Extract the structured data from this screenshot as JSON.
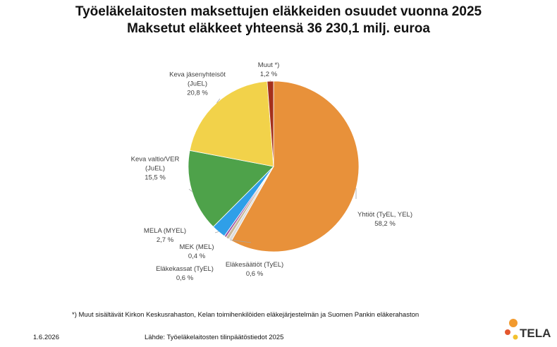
{
  "chart_data": {
    "type": "pie",
    "title": "Työeläkelaitosten maksettujen eläkkeiden osuudet vuonna 2025",
    "subtitle": "Maksetut eläkkeet yhteensä 36 230,1 milj. euroa",
    "categories": [
      "Yhtiöt (TyEL, YEL)",
      "Eläkesäätiöt (TyEL)",
      "Eläkekassat (TyEL)",
      "MEK (MEL)",
      "MELA (MYEL)",
      "Keva valtio/VER\n(JuEL)",
      "Keva jäsenyhteisöt\n(JuEL)",
      "Muut *)"
    ],
    "values": [
      58.2,
      0.6,
      0.6,
      0.4,
      2.7,
      15.5,
      20.8,
      1.2
    ],
    "value_labels": [
      "58,2 %",
      "0,6 %",
      "0,6 %",
      "0,4 %",
      "2,7 %",
      "15,5 %",
      "20,8 %",
      "1,2 %"
    ],
    "colors": [
      "#e8913a",
      "#dcdcdc",
      "#c9b99a",
      "#9e4fa0",
      "#2f9fe8",
      "#4ea24a",
      "#f2d24a",
      "#a5301b"
    ],
    "footnote": "*) Muut sisältävät  Kirkon Keskusrahaston, Kelan toimihenkilöiden eläkejärjestelmän ja Suomen Pankin eläkerahaston",
    "date": "1.6.2026",
    "source": "Lähde: Työeläkelaitosten tilinpäätöstiedot 2025",
    "logo_text": "TELA"
  }
}
